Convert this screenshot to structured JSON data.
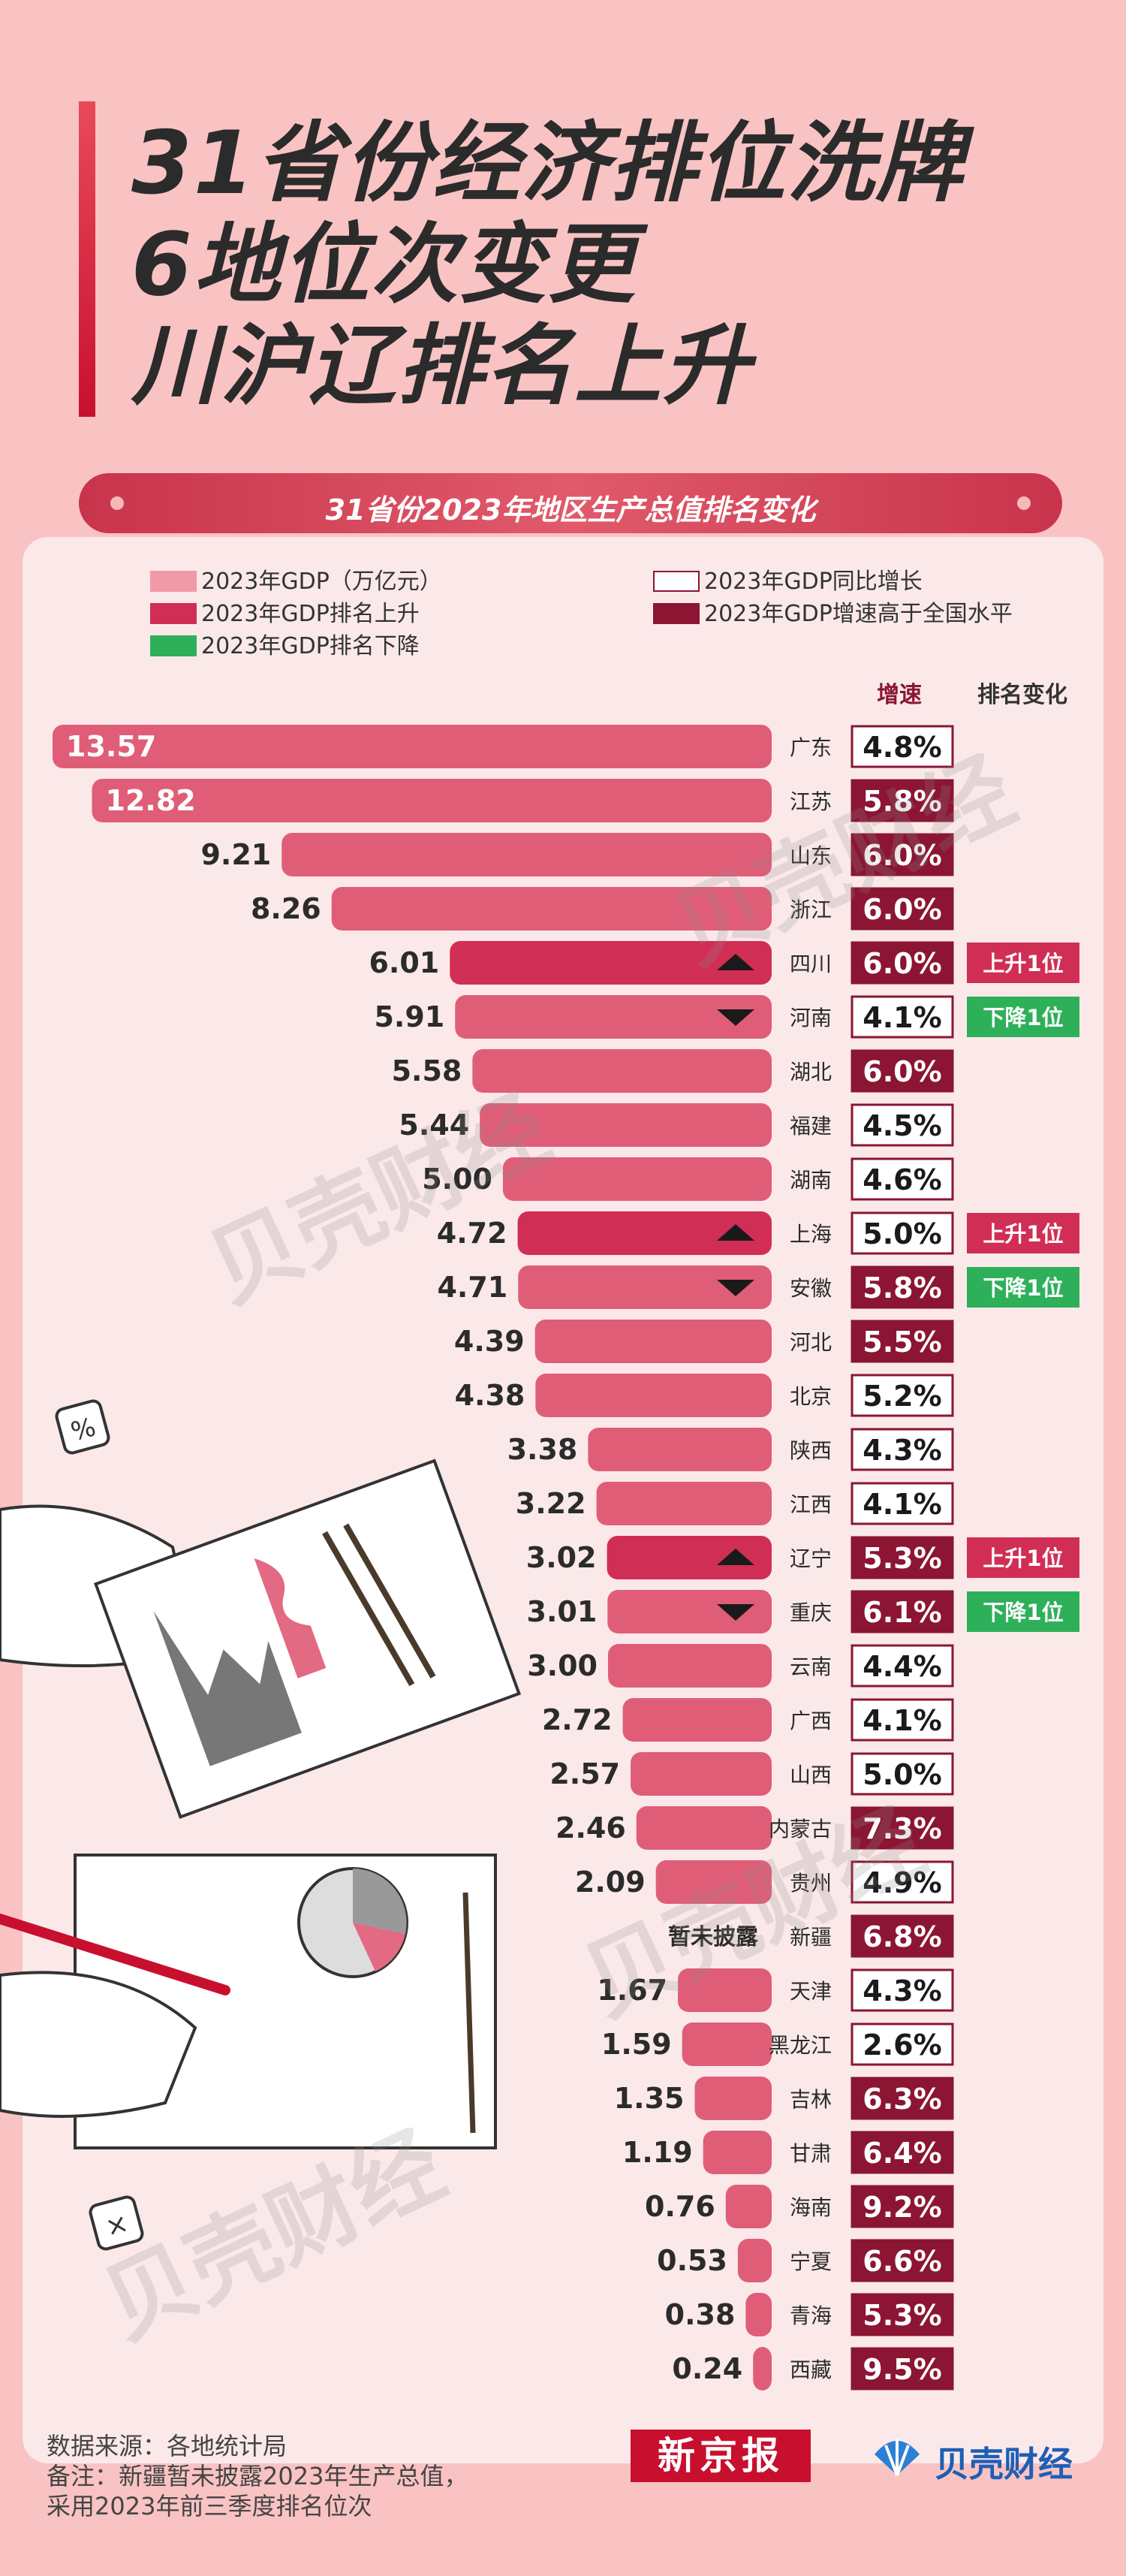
{
  "title": {
    "lines": [
      "31省份经济排位洗牌",
      "6地位次变更",
      "川沪辽排名上升"
    ]
  },
  "subtitle": "31省份2023年地区生产总值排名变化",
  "legend": {
    "gdp": "2023年GDP（万亿元）",
    "rank_up": "2023年GDP排名上升",
    "rank_down": "2023年GDP排名下降",
    "growth": "2023年GDP同比增长",
    "growth_above": "2023年GDP增速高于全国水平"
  },
  "column_headers": {
    "growth": "增速",
    "rank_change": "排名变化"
  },
  "colors": {
    "gdp_bar": "#e05d78",
    "rank_up": "#d12e55",
    "rank_down": "#2eb05a",
    "growth_above": "#8b1533",
    "accent": "#c8102e"
  },
  "chart_data": {
    "type": "bar",
    "orientation": "horizontal",
    "title": "31省份2023年地区生产总值排名变化",
    "unit": "万亿元",
    "categories": [
      "广东",
      "江苏",
      "山东",
      "浙江",
      "四川",
      "河南",
      "湖北",
      "福建",
      "湖南",
      "上海",
      "安徽",
      "河北",
      "北京",
      "陕西",
      "江西",
      "辽宁",
      "重庆",
      "云南",
      "广西",
      "山西",
      "内蒙古",
      "贵州",
      "新疆",
      "天津",
      "黑龙江",
      "吉林",
      "甘肃",
      "海南",
      "宁夏",
      "青海",
      "西藏"
    ],
    "series": [
      {
        "name": "2023年GDP（万亿元）",
        "values": [
          13.57,
          12.82,
          9.21,
          8.26,
          6.01,
          5.91,
          5.58,
          5.44,
          5.0,
          4.72,
          4.71,
          4.39,
          4.38,
          3.38,
          3.22,
          3.02,
          3.01,
          3.0,
          2.72,
          2.57,
          2.46,
          2.09,
          null,
          1.67,
          1.59,
          1.35,
          1.19,
          0.76,
          0.53,
          0.38,
          0.24
        ],
        "labels": [
          "13.57",
          "12.82",
          "9.21",
          "8.26",
          "6.01",
          "5.91",
          "5.58",
          "5.44",
          "5.00",
          "4.72",
          "4.71",
          "4.39",
          "4.38",
          "3.38",
          "3.22",
          "3.02",
          "3.01",
          "3.00",
          "2.72",
          "2.57",
          "2.46",
          "2.09",
          "暂未披露",
          "1.67",
          "1.59",
          "1.35",
          "1.19",
          "0.76",
          "0.53",
          "0.38",
          "0.24"
        ]
      },
      {
        "name": "2023年GDP同比增长",
        "values": [
          4.8,
          5.8,
          6.0,
          6.0,
          6.0,
          4.1,
          6.0,
          4.5,
          4.6,
          5.0,
          5.8,
          5.5,
          5.2,
          4.3,
          4.1,
          5.3,
          6.1,
          4.4,
          4.1,
          5.0,
          7.3,
          4.9,
          6.8,
          4.3,
          2.6,
          6.3,
          6.4,
          9.2,
          6.6,
          5.3,
          9.5
        ],
        "labels": [
          "4.8%",
          "5.8%",
          "6.0%",
          "6.0%",
          "6.0%",
          "4.1%",
          "6.0%",
          "4.5%",
          "4.6%",
          "5.0%",
          "5.8%",
          "5.5%",
          "5.2%",
          "4.3%",
          "4.1%",
          "5.3%",
          "6.1%",
          "4.4%",
          "4.1%",
          "5.0%",
          "7.3%",
          "4.9%",
          "6.8%",
          "4.3%",
          "2.6%",
          "6.3%",
          "6.4%",
          "9.2%",
          "6.6%",
          "5.3%",
          "9.5%"
        ],
        "above_national": [
          false,
          true,
          true,
          true,
          true,
          false,
          true,
          false,
          false,
          false,
          true,
          true,
          false,
          false,
          false,
          true,
          true,
          false,
          false,
          false,
          true,
          false,
          true,
          false,
          false,
          true,
          true,
          true,
          true,
          true,
          true
        ]
      }
    ],
    "rank_change": {
      "values": [
        0,
        0,
        0,
        0,
        1,
        -1,
        0,
        0,
        0,
        1,
        -1,
        0,
        0,
        0,
        0,
        1,
        -1,
        0,
        0,
        0,
        0,
        0,
        0,
        0,
        0,
        0,
        0,
        0,
        0,
        0,
        0
      ],
      "labels": [
        "",
        "",
        "",
        "",
        "上升1位",
        "下降1位",
        "",
        "",
        "",
        "上升1位",
        "下降1位",
        "",
        "",
        "",
        "",
        "上升1位",
        "下降1位",
        "",
        "",
        "",
        "",
        "",
        "",
        "",
        "",
        "",
        "",
        "",
        "",
        "",
        ""
      ]
    },
    "xlim": [
      0,
      14
    ],
    "grid": false,
    "legend_position": "top"
  },
  "watermark": "贝壳财经",
  "footer": {
    "source": "数据来源：各地统计局",
    "note_line1": "备注：新疆暂未披露2023年生产总值，",
    "note_line2": "采用2023年前三季度排名位次",
    "brand_xjb": "新京报",
    "brand_bk": "贝壳财经"
  }
}
